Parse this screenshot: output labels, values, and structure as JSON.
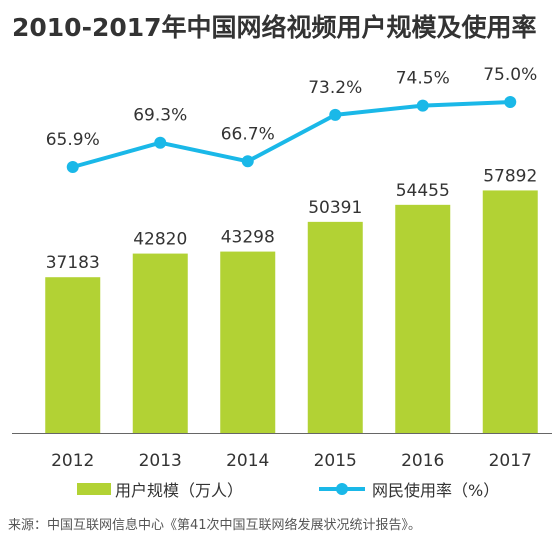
{
  "title": "2010-2017年中国网络视频用户规模及使用率",
  "source": "来源：中国互联网信息中心《第41次中国互联网络发展状况统计报告》。",
  "colors": {
    "bar": "#b2d234",
    "line": "#1ab8e8",
    "axis": "#666666",
    "text": "#333333"
  },
  "chart_data": {
    "type": "bar+line",
    "categories": [
      "2012",
      "2013",
      "2014",
      "2015",
      "2016",
      "2017"
    ],
    "series": [
      {
        "name": "用户规模（万人）",
        "type": "bar",
        "values": [
          37183,
          42820,
          43298,
          50391,
          54455,
          57892
        ],
        "labels": [
          "37183",
          "42820",
          "43298",
          "50391",
          "54455",
          "57892"
        ]
      },
      {
        "name": "网民使用率（%）",
        "type": "line",
        "values": [
          65.9,
          69.3,
          66.7,
          73.2,
          74.5,
          75.0
        ],
        "labels": [
          "65.9%",
          "69.3%",
          "66.7%",
          "73.2%",
          "74.5%",
          "75.0%"
        ]
      }
    ],
    "legend_position": "bottom",
    "grid": false
  }
}
